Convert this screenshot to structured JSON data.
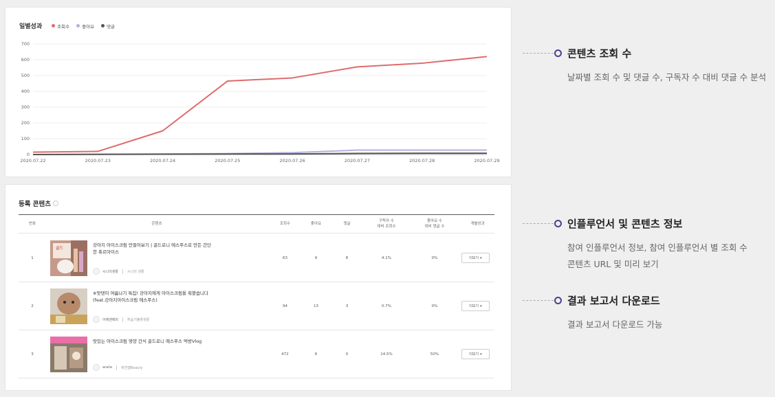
{
  "chart_card": {
    "title": "일별성과",
    "legend": [
      {
        "label": "조회수",
        "color": "#de6b6b"
      },
      {
        "label": "좋아요",
        "color": "#b3b2dd"
      },
      {
        "label": "댓글",
        "color": "#555555"
      }
    ]
  },
  "chart_data": {
    "type": "line",
    "x": [
      "2020.07.22",
      "2020.07.23",
      "2020.07.24",
      "2020.07.25",
      "2020.07.26",
      "2020.07.27",
      "2020.07.28",
      "2020.07.29"
    ],
    "ylim": [
      0,
      700
    ],
    "yticks": [
      "0",
      "100",
      "200",
      "300",
      "400",
      "500",
      "600",
      "700"
    ],
    "grid": true,
    "series": [
      {
        "name": "조회수",
        "color": "#de6b6b",
        "values": [
          15,
          20,
          150,
          465,
          485,
          555,
          578,
          620
        ]
      },
      {
        "name": "좋아요",
        "color": "#b3b2dd",
        "values": [
          0,
          2,
          4,
          6,
          12,
          28,
          28,
          28
        ]
      },
      {
        "name": "댓글",
        "color": "#555555",
        "values": [
          0,
          1,
          2,
          3,
          4,
          7,
          8,
          8
        ]
      }
    ]
  },
  "table_card": {
    "title": "등록 콘텐츠",
    "headers": [
      "번호",
      "콘텐츠",
      "조회수",
      "좋아요",
      "댓글",
      "구독자 수\n대비 조회수",
      "좋아요 수\n대비 댓글 수",
      "개별성과"
    ],
    "rows": [
      {
        "no": "1",
        "title": "강아지 아이스크림 만들어보기 | 골드로니 에스푸스로 만든 간단한 츄르아이스",
        "creator": "시나의생활",
        "creator_sub": "시나의 생활",
        "views": "63",
        "likes": "9",
        "comments": "8",
        "view_rate": "4.1%",
        "comment_rate": "0%",
        "button": "더보기"
      },
      {
        "no": "2",
        "title": "※맛댕이 여름나기 특집! 강아지에게 아이스크림을 줘봤습니다 (feat.강아지아이스크림 에스푸스)",
        "creator": "아제엔제피",
        "creator_sub": "취솜기불꽃생활",
        "views": "94",
        "likes": "13",
        "comments": "3",
        "view_rate": "0.7%",
        "comment_rate": "0%",
        "button": "더보기"
      },
      {
        "no": "3",
        "title": "맛있는 아이스크림 영양 간식 골드로니 에스푸스 먹방Vlog",
        "creator": "araila",
        "creator_sub": "애견갤Beauty",
        "views": "472",
        "likes": "6",
        "comments": "0",
        "view_rate": "14.5%",
        "comment_rate": "50%",
        "button": "더보기"
      }
    ]
  },
  "features": [
    {
      "title": "콘텐츠 조회 수",
      "desc": [
        "날짜별 조회 수 및 댓글 수, 구독자 수 대비 댓글 수 분석"
      ]
    },
    {
      "title": "인플루언서 및 콘텐츠 정보",
      "desc": [
        "참여 인플루언서 정보, 참여 인플루언서 별 조회 수",
        "콘텐츠 URL 및 미리 보기"
      ]
    },
    {
      "title": "결과 보고서 다운로드",
      "desc": [
        "결과 보고서 다운로드 가능"
      ]
    }
  ]
}
